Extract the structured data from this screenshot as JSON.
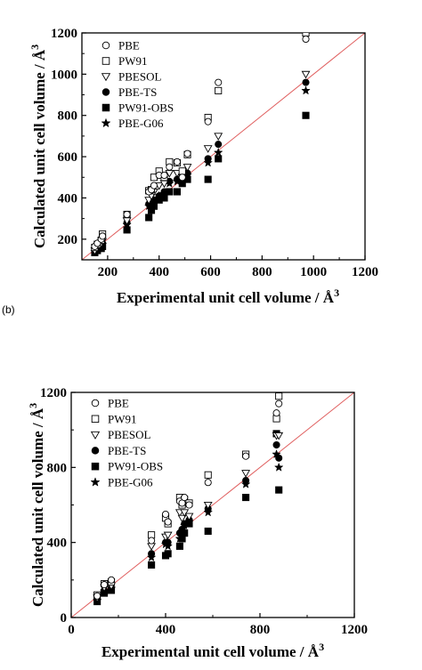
{
  "panel_label": "(b)",
  "chart_data": [
    {
      "type": "scatter",
      "xlabel": "Experimental unit cell volume / Å",
      "xlabel_sup": "3",
      "ylabel": "Calculated unit cell volume / Å",
      "ylabel_sup": "3",
      "xlim": [
        100,
        1200
      ],
      "ylim": [
        100,
        1200
      ],
      "x_ticks": [
        200,
        400,
        600,
        800,
        1000,
        1200
      ],
      "y_ticks": [
        200,
        400,
        600,
        800,
        1000,
        1200
      ],
      "grid": false,
      "legend_position": "top-left",
      "reference_line_color": "#e06060",
      "x_values": [
        150,
        160,
        175,
        180,
        275,
        360,
        370,
        380,
        400,
        420,
        440,
        470,
        490,
        510,
        590,
        630,
        970
      ],
      "series": [
        {
          "name": "PBE",
          "marker": "circle-open",
          "values": [
            165,
            180,
            200,
            215,
            320,
            430,
            440,
            460,
            510,
            510,
            550,
            575,
            500,
            615,
            770,
            960,
            1170
          ]
        },
        {
          "name": "PW91",
          "marker": "square-open",
          "values": [
            160,
            175,
            195,
            225,
            320,
            435,
            440,
            500,
            530,
            500,
            575,
            570,
            530,
            610,
            790,
            920,
            1200
          ]
        },
        {
          "name": "PBESOL",
          "marker": "triangle-open",
          "values": [
            145,
            160,
            180,
            190,
            290,
            390,
            410,
            430,
            460,
            470,
            520,
            520,
            500,
            550,
            640,
            700,
            1000
          ]
        },
        {
          "name": "PBE-TS",
          "marker": "circle-filled",
          "values": [
            145,
            155,
            170,
            180,
            280,
            370,
            375,
            390,
            410,
            430,
            480,
            490,
            490,
            520,
            590,
            660,
            960
          ]
        },
        {
          "name": "PW91-OBS",
          "marker": "square-filled",
          "values": [
            135,
            145,
            155,
            165,
            245,
            305,
            340,
            360,
            390,
            400,
            430,
            430,
            470,
            490,
            490,
            590,
            800
          ]
        },
        {
          "name": "PBE-G06",
          "marker": "star",
          "values": [
            140,
            150,
            165,
            175,
            270,
            360,
            370,
            380,
            410,
            420,
            470,
            480,
            480,
            510,
            570,
            620,
            920
          ]
        }
      ]
    },
    {
      "type": "scatter",
      "xlabel": "Experimental unit cell volume / Å",
      "xlabel_sup": "3",
      "ylabel": "Calculated unit cell volume / Å",
      "ylabel_sup": "3",
      "xlim": [
        0,
        1200
      ],
      "ylim": [
        0,
        1200
      ],
      "x_ticks": [
        0,
        400,
        800,
        1200
      ],
      "y_ticks": [
        0,
        400,
        800,
        1200
      ],
      "grid": false,
      "legend_position": "top-left",
      "reference_line_color": "#e06060",
      "x_values": [
        110,
        140,
        170,
        340,
        400,
        410,
        460,
        470,
        480,
        500,
        580,
        740,
        870,
        880
      ],
      "series": [
        {
          "name": "PBE",
          "marker": "circle-open",
          "values": [
            115,
            175,
            200,
            410,
            550,
            510,
            620,
            610,
            640,
            600,
            720,
            860,
            1090,
            1140
          ]
        },
        {
          "name": "PW91",
          "marker": "square-open",
          "values": [
            120,
            180,
            190,
            440,
            530,
            500,
            640,
            600,
            630,
            610,
            760,
            870,
            1060,
            1180
          ]
        },
        {
          "name": "PBESOL",
          "marker": "triangle-open",
          "values": [
            105,
            160,
            170,
            380,
            430,
            440,
            560,
            530,
            560,
            540,
            600,
            770,
            970,
            970
          ]
        },
        {
          "name": "PBE-TS",
          "marker": "circle-filled",
          "values": [
            95,
            145,
            160,
            340,
            400,
            400,
            450,
            470,
            500,
            520,
            580,
            730,
            920,
            850
          ]
        },
        {
          "name": "PW91-OBS",
          "marker": "square-filled",
          "values": [
            85,
            130,
            145,
            280,
            330,
            340,
            380,
            420,
            450,
            500,
            460,
            640,
            980,
            680
          ]
        },
        {
          "name": "PBE-G06",
          "marker": "star",
          "values": [
            90,
            140,
            155,
            320,
            390,
            380,
            420,
            460,
            490,
            510,
            560,
            710,
            870,
            800
          ]
        }
      ]
    }
  ]
}
